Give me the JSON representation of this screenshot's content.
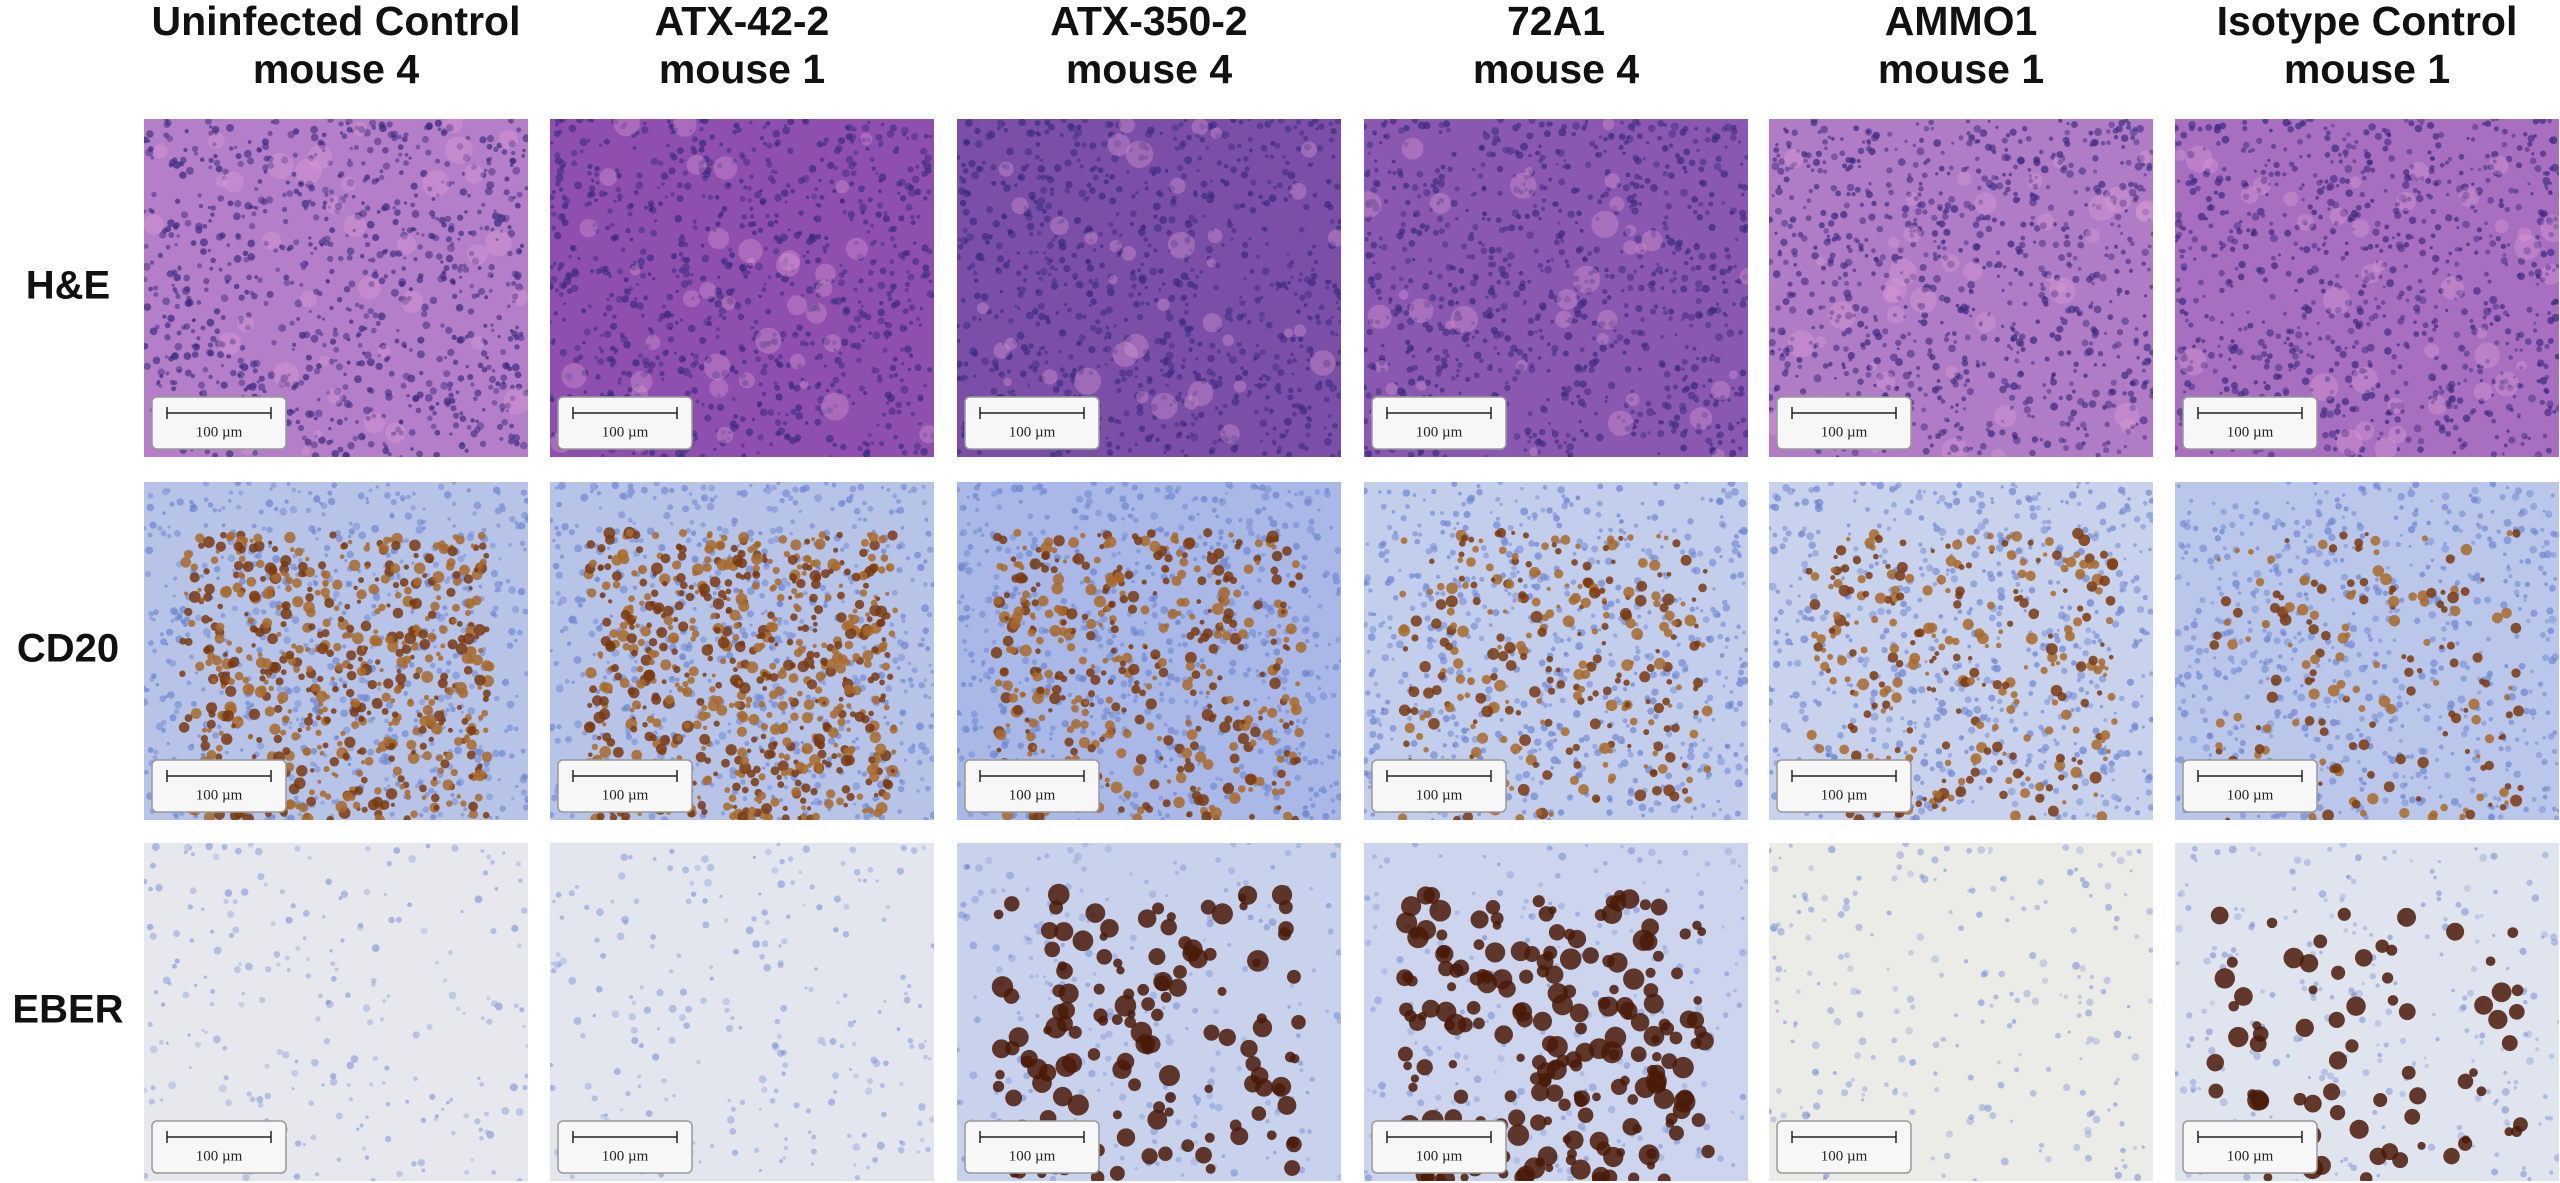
{
  "columns": [
    {
      "line1": "Uninfected Control",
      "line2": "mouse 4"
    },
    {
      "line1": "ATX-42-2",
      "line2": "mouse 1"
    },
    {
      "line1": "ATX-350-2",
      "line2": "mouse 4"
    },
    {
      "line1": "72A1",
      "line2": "mouse 4"
    },
    {
      "line1": "AMMO1",
      "line2": "mouse 1"
    },
    {
      "line1": "Isotype Control",
      "line2": "mouse 1"
    }
  ],
  "rows": [
    {
      "label": "H&E",
      "scale_bars": [
        "100 µm",
        "100 µm",
        "100 µm",
        "100 µm",
        "100 µm",
        "100 µm"
      ]
    },
    {
      "label": "CD20",
      "scale_bars": [
        "100 µm",
        "100 µm",
        "100 µm",
        "100 µm",
        "100 µm",
        "100 µm"
      ]
    },
    {
      "label": "EBER",
      "scale_bars": [
        "100 µm",
        "100 µm",
        "100 µm",
        "100 µm",
        "100 µm",
        "100 µm"
      ]
    }
  ]
}
